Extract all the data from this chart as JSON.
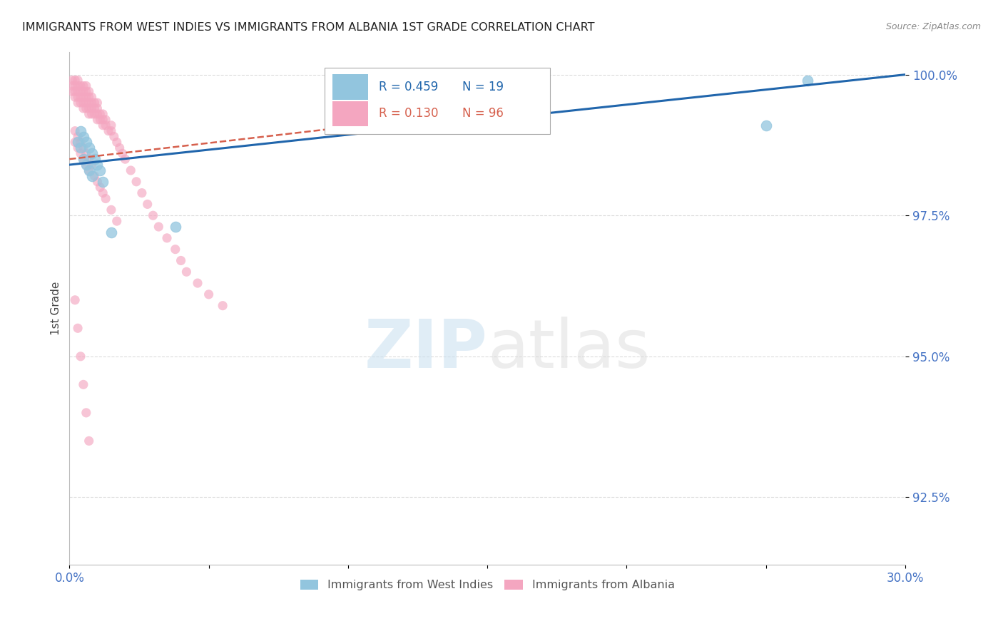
{
  "title": "IMMIGRANTS FROM WEST INDIES VS IMMIGRANTS FROM ALBANIA 1ST GRADE CORRELATION CHART",
  "source": "Source: ZipAtlas.com",
  "ylabel": "1st Grade",
  "xlim": [
    0.0,
    0.3
  ],
  "ylim": [
    0.913,
    1.004
  ],
  "yticks": [
    0.925,
    0.95,
    0.975,
    1.0
  ],
  "ytick_labels": [
    "92.5%",
    "95.0%",
    "97.5%",
    "100.0%"
  ],
  "blue_color": "#92c5de",
  "pink_color": "#f4a6c0",
  "trend_blue_color": "#2166ac",
  "trend_pink_color": "#d6604d",
  "background_color": "#ffffff",
  "grid_color": "#cccccc",
  "title_color": "#222222",
  "axis_label_color": "#444444",
  "tick_label_color": "#4472c4",
  "blue_x": [
    0.003,
    0.004,
    0.004,
    0.005,
    0.005,
    0.006,
    0.006,
    0.007,
    0.007,
    0.008,
    0.008,
    0.009,
    0.01,
    0.011,
    0.012,
    0.015,
    0.038,
    0.25,
    0.265
  ],
  "blue_y": [
    0.988,
    0.99,
    0.987,
    0.989,
    0.985,
    0.988,
    0.984,
    0.987,
    0.983,
    0.986,
    0.982,
    0.985,
    0.984,
    0.983,
    0.981,
    0.972,
    0.973,
    0.991,
    0.999
  ],
  "pink_x": [
    0.001,
    0.001,
    0.001,
    0.002,
    0.002,
    0.002,
    0.002,
    0.003,
    0.003,
    0.003,
    0.003,
    0.003,
    0.004,
    0.004,
    0.004,
    0.004,
    0.005,
    0.005,
    0.005,
    0.005,
    0.005,
    0.006,
    0.006,
    0.006,
    0.006,
    0.006,
    0.007,
    0.007,
    0.007,
    0.007,
    0.007,
    0.008,
    0.008,
    0.008,
    0.008,
    0.009,
    0.009,
    0.009,
    0.01,
    0.01,
    0.01,
    0.01,
    0.011,
    0.011,
    0.012,
    0.012,
    0.012,
    0.013,
    0.013,
    0.014,
    0.015,
    0.015,
    0.016,
    0.017,
    0.018,
    0.019,
    0.02,
    0.022,
    0.024,
    0.026,
    0.028,
    0.03,
    0.032,
    0.035,
    0.038,
    0.04,
    0.042,
    0.046,
    0.05,
    0.055,
    0.002,
    0.002,
    0.003,
    0.003,
    0.004,
    0.004,
    0.005,
    0.005,
    0.006,
    0.006,
    0.007,
    0.007,
    0.008,
    0.009,
    0.01,
    0.011,
    0.012,
    0.013,
    0.015,
    0.017,
    0.002,
    0.003,
    0.004,
    0.005,
    0.006,
    0.007
  ],
  "pink_y": [
    0.999,
    0.998,
    0.997,
    0.999,
    0.998,
    0.997,
    0.996,
    0.999,
    0.998,
    0.997,
    0.996,
    0.995,
    0.998,
    0.997,
    0.996,
    0.995,
    0.998,
    0.997,
    0.996,
    0.995,
    0.994,
    0.998,
    0.997,
    0.996,
    0.995,
    0.994,
    0.997,
    0.996,
    0.995,
    0.994,
    0.993,
    0.996,
    0.995,
    0.994,
    0.993,
    0.995,
    0.994,
    0.993,
    0.995,
    0.994,
    0.993,
    0.992,
    0.993,
    0.992,
    0.993,
    0.992,
    0.991,
    0.992,
    0.991,
    0.99,
    0.991,
    0.99,
    0.989,
    0.988,
    0.987,
    0.986,
    0.985,
    0.983,
    0.981,
    0.979,
    0.977,
    0.975,
    0.973,
    0.971,
    0.969,
    0.967,
    0.965,
    0.963,
    0.961,
    0.959,
    0.99,
    0.988,
    0.989,
    0.987,
    0.988,
    0.986,
    0.987,
    0.985,
    0.986,
    0.984,
    0.985,
    0.983,
    0.984,
    0.982,
    0.981,
    0.98,
    0.979,
    0.978,
    0.976,
    0.974,
    0.96,
    0.955,
    0.95,
    0.945,
    0.94,
    0.935
  ],
  "blue_trend_x0": 0.0,
  "blue_trend_y0": 0.984,
  "blue_trend_x1": 0.3,
  "blue_trend_y1": 1.0,
  "pink_trend_x0": 0.0,
  "pink_trend_y0": 0.985,
  "pink_trend_x1": 0.14,
  "pink_trend_y1": 0.993
}
